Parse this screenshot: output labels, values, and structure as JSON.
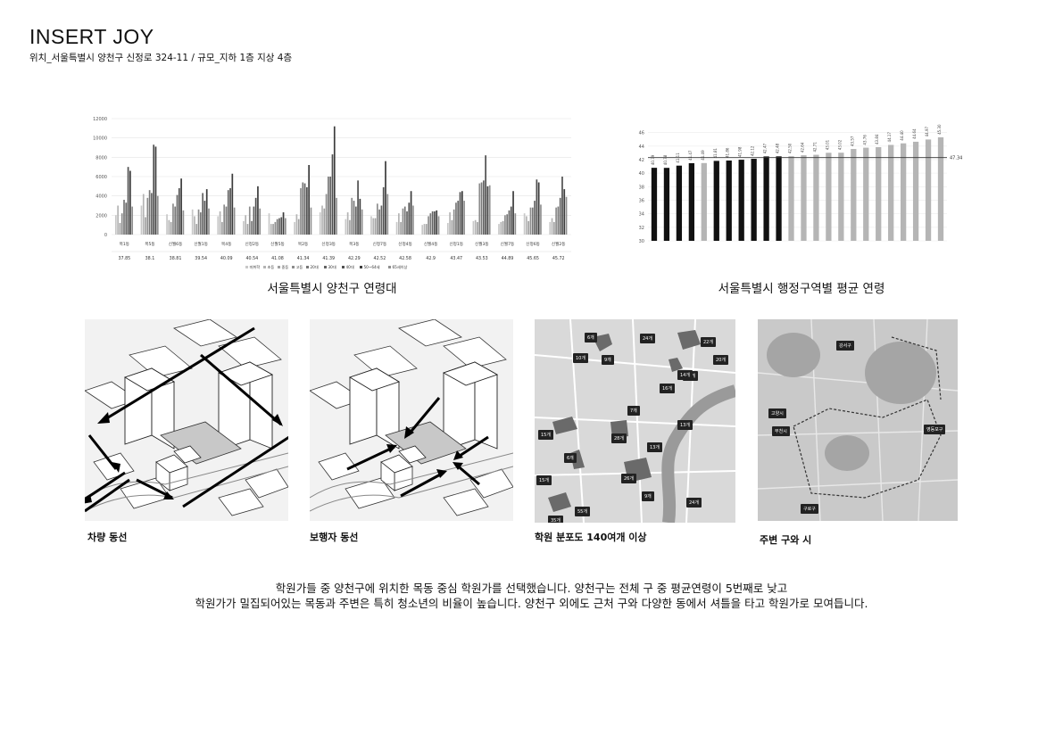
{
  "header": {
    "title": "INSERT JOY",
    "subtitle": "위치_서울특별시 양천구 신정로 324-11 / 규모_지하 1층 지상 4층"
  },
  "chart_data": [
    {
      "type": "bar",
      "title": "서울특별시 양천구 연령대",
      "ylim": [
        0,
        12000
      ],
      "yticks": [
        0,
        2000,
        4000,
        6000,
        8000,
        10000,
        12000
      ],
      "categories": [
        "목1동",
        "목5동",
        "신월6동",
        "신월1동",
        "목4동",
        "신정2동",
        "신월5동",
        "목2동",
        "신정3동",
        "목3동",
        "신정7동",
        "신정4동",
        "신월4동",
        "신정1동",
        "신월3동",
        "신월7동",
        "신정6동",
        "신월2동"
      ],
      "mean_age_row": [
        "37.85",
        "38.1",
        "38.81",
        "39.54",
        "40.09",
        "40.54",
        "41.08",
        "41.34",
        "41.39",
        "42.29",
        "42.52",
        "42.58",
        "42.9",
        "43.47",
        "43.53",
        "44.89",
        "45.65",
        "45.72"
      ],
      "legend": [
        "미취학",
        "초등",
        "중등",
        "고등",
        "20대",
        "30대",
        "40대",
        "50~64세",
        "65세이상"
      ],
      "colors": [
        "#c8c8c8",
        "#b4b4b4",
        "#a0a0a0",
        "#8c8c8c",
        "#777777",
        "#636363",
        "#4f4f4f",
        "#3b3b3b",
        "#8f8f8f"
      ],
      "series_values": [
        [
          2000,
          3000,
          2100,
          2600,
          1900,
          1400,
          2200,
          1300,
          2300,
          1600,
          1900,
          1300,
          1000,
          1200,
          1400,
          1100,
          2200,
          1300
        ],
        [
          3000,
          4200,
          1500,
          1900,
          2400,
          2000,
          1100,
          2100,
          3000,
          2300,
          1700,
          2200,
          1100,
          2300,
          1500,
          1300,
          1900,
          1700
        ],
        [
          1200,
          1800,
          1300,
          1100,
          1300,
          1100,
          1100,
          1600,
          2700,
          1500,
          1700,
          1300,
          1100,
          1500,
          1300,
          1400,
          1400,
          1300
        ],
        [
          2200,
          3800,
          3200,
          2600,
          3100,
          2900,
          1300,
          4800,
          4200,
          3800,
          3200,
          2700,
          1900,
          2600,
          5300,
          2000,
          2800,
          2800
        ],
        [
          3600,
          4600,
          2900,
          2300,
          2900,
          1400,
          1600,
          5400,
          6000,
          3500,
          2600,
          2900,
          2200,
          3300,
          5400,
          2100,
          2800,
          2900
        ],
        [
          3300,
          4300,
          4100,
          4300,
          4600,
          2900,
          1700,
          5300,
          6000,
          2900,
          3000,
          2400,
          2400,
          3500,
          5600,
          2500,
          3500,
          3800
        ],
        [
          7000,
          9300,
          4800,
          3500,
          4800,
          3800,
          1800,
          4900,
          8300,
          5600,
          4900,
          3300,
          2400,
          4400,
          8200,
          2900,
          5700,
          6000
        ],
        [
          6600,
          9100,
          5800,
          4700,
          6300,
          5000,
          2300,
          7200,
          11200,
          3700,
          7600,
          4500,
          2500,
          4500,
          5000,
          4500,
          5400,
          4700
        ],
        [
          2900,
          4000,
          2500,
          2700,
          2800,
          2700,
          1700,
          2800,
          3800,
          2600,
          4200,
          3000,
          1900,
          3500,
          5100,
          2200,
          3100,
          3900
        ]
      ]
    },
    {
      "type": "bar",
      "title": "서울특별시 행정구역별 평균 연령",
      "ylim": [
        30,
        47
      ],
      "yticks": [
        30,
        32,
        34,
        36,
        38,
        40,
        42,
        44,
        46
      ],
      "reference_line": 47.34,
      "reference_label": "47.34",
      "values": [
        40.79,
        40.78,
        41.11,
        41.47,
        41.49,
        41.81,
        41.86,
        41.98,
        42.12,
        42.47,
        42.48,
        42.5,
        42.64,
        42.71,
        43.01,
        43.02,
        43.57,
        43.76,
        43.84,
        44.17,
        44.4,
        44.64,
        44.97,
        45.3
      ],
      "highlight": [
        true,
        true,
        true,
        true,
        false,
        true,
        true,
        true,
        true,
        true,
        true,
        false,
        false,
        false,
        false,
        false,
        false,
        false,
        false,
        false,
        false,
        false,
        false,
        false
      ],
      "value_labels": [
        "40.79",
        "40.78",
        "41.11",
        "41.47",
        "41.49",
        "41.81",
        "41.86",
        "41.98",
        "42.12",
        "42.47",
        "42.48",
        "42.50",
        "42.64",
        "42.71",
        "43.01",
        "43.02",
        "43.57",
        "43.76",
        "43.84",
        "44.17",
        "44.40",
        "44.64",
        "44.97",
        "45.30"
      ]
    }
  ],
  "panels": {
    "vehicle_caption": "차량 동선",
    "pedestrian_caption": "보행자 동선",
    "academy_caption": "학원 분포도 140여개 이상",
    "nearby_caption": "주변 구와 시"
  },
  "map_tags": {
    "academy": [
      "15개",
      "6개",
      "24개",
      "12개",
      "10개",
      "9개",
      "14개",
      "22개",
      "16개",
      "7개",
      "13개",
      "28개",
      "13개",
      "15개",
      "6개",
      "26개",
      "9개",
      "55개",
      "35개",
      "24개",
      "20개"
    ],
    "nearby": [
      "강서구",
      "고양시",
      "부천시",
      "영등포구",
      "구로구"
    ]
  },
  "description": {
    "line1": "학원가들 중 양천구에 위치한 목동 중심 학원가를 선택했습니다. 양천구는  전체 구 중 평균연령이 5번째로 낮고",
    "line2": "학원가가 밀집되어있는 목동과 주변은 특히 청소년의 비율이 높습니다. 양천구 외에도 근처 구와 다양한 동에서 셔틀을 타고 학원가로 모여듭니다."
  }
}
